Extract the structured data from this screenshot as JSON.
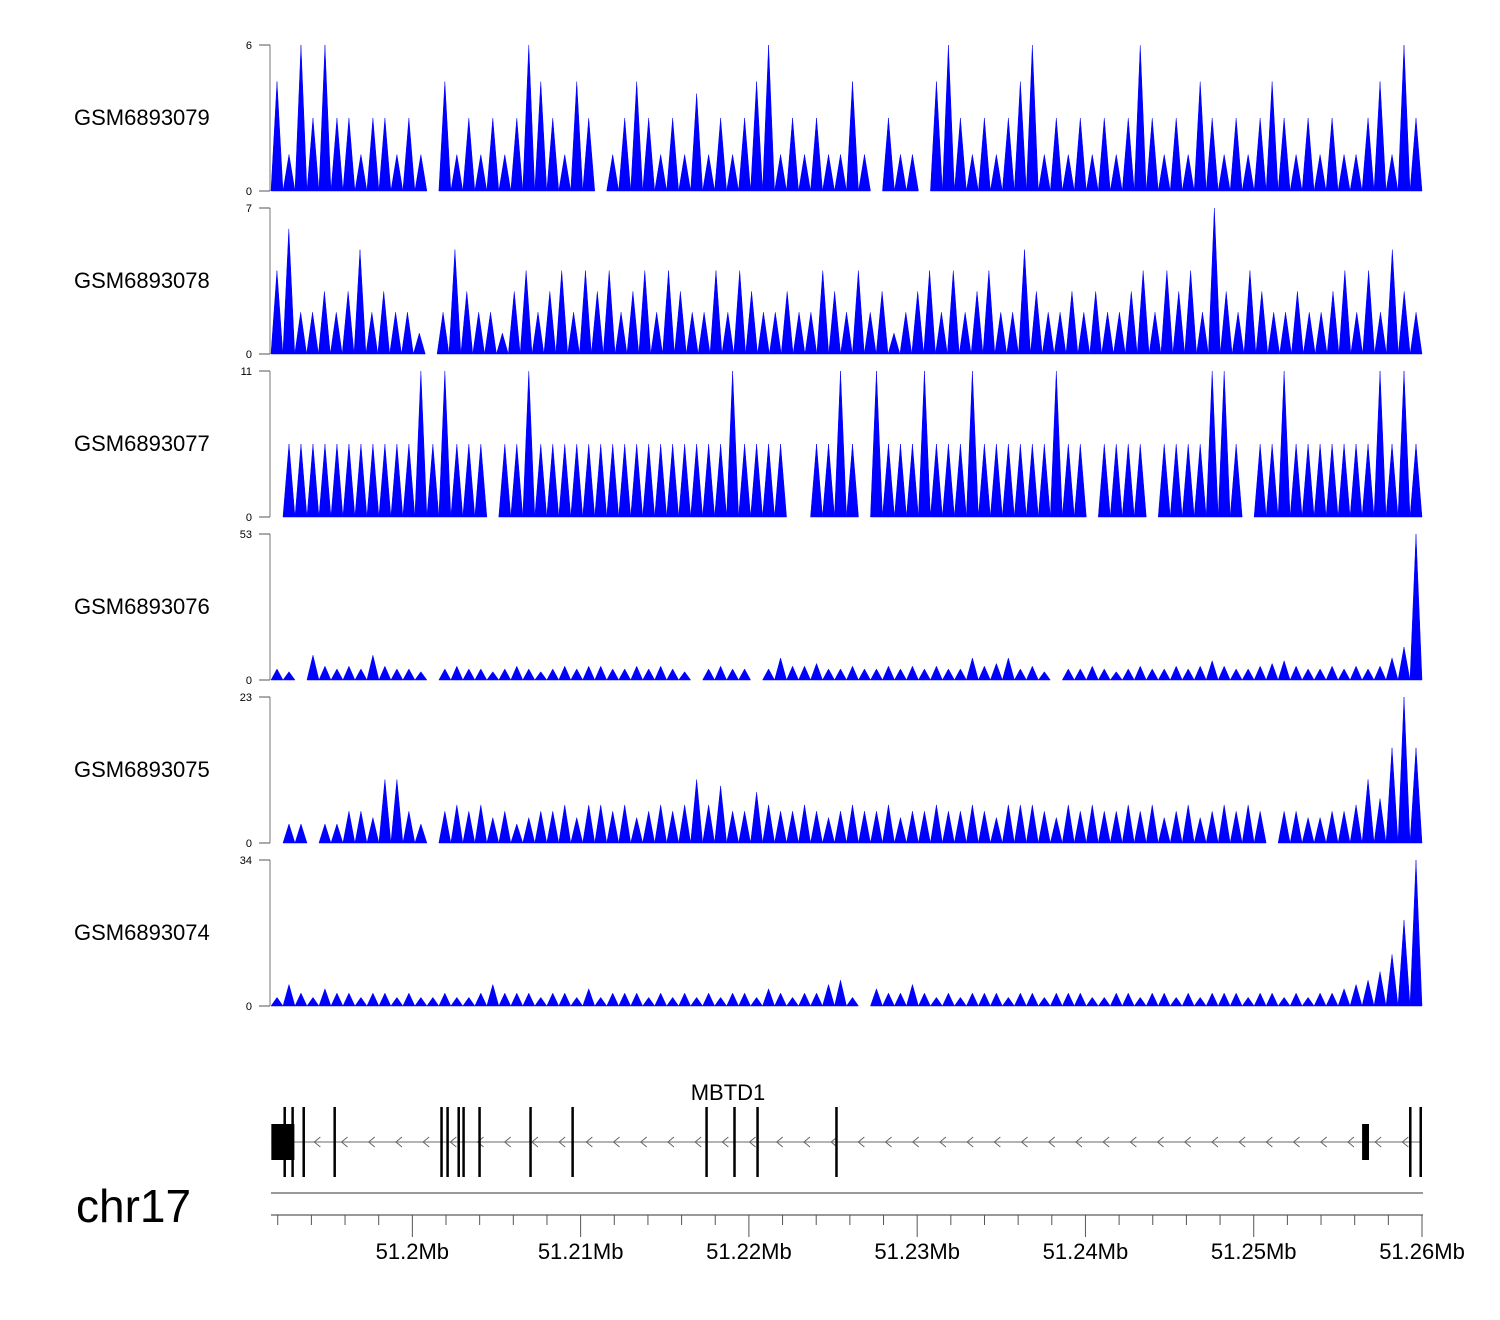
{
  "chart_data": {
    "type": "area",
    "title": "",
    "xlim": [
      51.1916,
      51.26
    ],
    "xlabel_unit": "Mb",
    "chromosome": "chr17",
    "x_ticks": [
      "51.2Mb",
      "51.21Mb",
      "51.22Mb",
      "51.23Mb",
      "51.24Mb",
      "51.25Mb",
      "51.26Mb"
    ],
    "x_tick_values": [
      51.2,
      51.21,
      51.22,
      51.23,
      51.24,
      51.25,
      51.26
    ],
    "fill_color": "#0000FF",
    "tracks": [
      {
        "name": "GSM6893079",
        "ylim": [
          0,
          6
        ],
        "ytick_labels": [
          "6",
          "0"
        ],
        "values": [
          4.5,
          1.5,
          6,
          3,
          6,
          3,
          3,
          1.5,
          3,
          3,
          1.5,
          3,
          1.5,
          0,
          4.5,
          1.5,
          3,
          1.5,
          3,
          1.5,
          3,
          6,
          4.5,
          3,
          1.5,
          4.5,
          3,
          0,
          1.5,
          3,
          4.5,
          3,
          1.5,
          3,
          1.5,
          4,
          1.5,
          3,
          1.5,
          3,
          4.5,
          6,
          1.5,
          3,
          1.5,
          3,
          1.5,
          1.5,
          4.5,
          1.5,
          0,
          3,
          1.5,
          1.5,
          0,
          4.5,
          6,
          3,
          1.5,
          3,
          1.5,
          3,
          4.5,
          6,
          1.5,
          3,
          1.5,
          3,
          1.5,
          3,
          1.5,
          3,
          6,
          3,
          1.5,
          3,
          1.5,
          4.5,
          3,
          1.5,
          3,
          1.5,
          3,
          4.5,
          3,
          1.5,
          3,
          1.5,
          3,
          1.5,
          1.5,
          3,
          4.5,
          1.5,
          6,
          3
        ]
      },
      {
        "name": "GSM6893078",
        "ylim": [
          0,
          7
        ],
        "ytick_labels": [
          "7",
          "0"
        ],
        "values": [
          4,
          6,
          2,
          2,
          3,
          2,
          3,
          5,
          2,
          3,
          2,
          2,
          1,
          0,
          2,
          5,
          3,
          2,
          2,
          1,
          3,
          4,
          2,
          3,
          4,
          2,
          4,
          3,
          4,
          2,
          3,
          4,
          2,
          4,
          3,
          2,
          2,
          4,
          2,
          4,
          3,
          2,
          2,
          3,
          2,
          2,
          4,
          3,
          2,
          4,
          2,
          3,
          1,
          2,
          3,
          4,
          2,
          4,
          2,
          3,
          4,
          2,
          2,
          5,
          3,
          2,
          2,
          3,
          2,
          3,
          2,
          2,
          3,
          4,
          2,
          4,
          3,
          4,
          2,
          7,
          3,
          2,
          4,
          3,
          2,
          2,
          3,
          2,
          2,
          3,
          4,
          2,
          4,
          2,
          5,
          3,
          2
        ]
      },
      {
        "name": "GSM6893077",
        "ylim": [
          0,
          11
        ],
        "ytick_labels": [
          "11",
          "0"
        ],
        "values": [
          0,
          5.5,
          5.5,
          5.5,
          5.5,
          5.5,
          5.5,
          5.5,
          5.5,
          5.5,
          5.5,
          5.5,
          11,
          5.5,
          11,
          5.5,
          5.5,
          5.5,
          0,
          5.5,
          5.5,
          11,
          5.5,
          5.5,
          5.5,
          5.5,
          5.5,
          5.5,
          5.5,
          5.5,
          5.5,
          5.5,
          5.5,
          5.5,
          5.5,
          5.5,
          5.5,
          5.5,
          11,
          5.5,
          5.5,
          5.5,
          5.5,
          0,
          0,
          5.5,
          5.5,
          11,
          5.5,
          0,
          11,
          5.5,
          5.5,
          5.5,
          11,
          5.5,
          5.5,
          5.5,
          11,
          5.5,
          5.5,
          5.5,
          5.5,
          5.5,
          5.5,
          11,
          5.5,
          5.5,
          0,
          5.5,
          5.5,
          5.5,
          5.5,
          0,
          5.5,
          5.5,
          5.5,
          5.5,
          11,
          11,
          5.5,
          0,
          5.5,
          5.5,
          11,
          5.5,
          5.5,
          5.5,
          5.5,
          5.5,
          5.5,
          5.5,
          11,
          5.5,
          11,
          5.5
        ]
      },
      {
        "name": "GSM6893076",
        "ylim": [
          0,
          53
        ],
        "ytick_labels": [
          "53",
          "0"
        ],
        "values": [
          4,
          3,
          0,
          9,
          5,
          4,
          5,
          4,
          9,
          5,
          4,
          4,
          3,
          0,
          4,
          5,
          4,
          4,
          3,
          4,
          5,
          4,
          3,
          4,
          5,
          4,
          5,
          5,
          4,
          4,
          5,
          4,
          5,
          4,
          3,
          0,
          4,
          5,
          4,
          4,
          0,
          4,
          8,
          5,
          5,
          6,
          4,
          4,
          5,
          4,
          4,
          5,
          4,
          5,
          4,
          5,
          4,
          4,
          8,
          5,
          6,
          8,
          4,
          5,
          3,
          0,
          4,
          4,
          5,
          4,
          3,
          4,
          5,
          4,
          4,
          5,
          4,
          5,
          7,
          5,
          4,
          4,
          5,
          6,
          7,
          5,
          4,
          4,
          5,
          4,
          5,
          4,
          5,
          8,
          12,
          53
        ]
      },
      {
        "name": "GSM6893075",
        "ylim": [
          0,
          23
        ],
        "ytick_labels": [
          "23",
          "0"
        ],
        "values": [
          0,
          3,
          3,
          0,
          3,
          3,
          5,
          5,
          4,
          10,
          10,
          5,
          3,
          0,
          5,
          6,
          5,
          6,
          4,
          5,
          3,
          4,
          5,
          5,
          6,
          4,
          6,
          6,
          5,
          6,
          4,
          5,
          6,
          5,
          6,
          10,
          6,
          9,
          5,
          5,
          8,
          6,
          5,
          5,
          6,
          5,
          4,
          5,
          6,
          5,
          5,
          6,
          4,
          5,
          5,
          6,
          5,
          5,
          6,
          5,
          4,
          6,
          6,
          6,
          5,
          4,
          6,
          5,
          6,
          5,
          5,
          6,
          5,
          6,
          4,
          5,
          6,
          4,
          5,
          6,
          5,
          6,
          5,
          0,
          5,
          5,
          4,
          4,
          5,
          5,
          6,
          10,
          7,
          15,
          23,
          15
        ]
      },
      {
        "name": "GSM6893074",
        "ylim": [
          0,
          34
        ],
        "ytick_labels": [
          "34",
          "0"
        ],
        "values": [
          2,
          5,
          3,
          2,
          4,
          3,
          3,
          2,
          3,
          3,
          2,
          3,
          2,
          2,
          3,
          2,
          2,
          3,
          5,
          3,
          3,
          3,
          2,
          3,
          3,
          2,
          4,
          2,
          3,
          3,
          3,
          2,
          3,
          2,
          3,
          2,
          3,
          2,
          3,
          3,
          2,
          4,
          3,
          2,
          3,
          3,
          5,
          6,
          2,
          0,
          4,
          3,
          3,
          5,
          3,
          2,
          3,
          2,
          3,
          3,
          3,
          2,
          3,
          3,
          2,
          3,
          3,
          3,
          2,
          2,
          3,
          3,
          2,
          3,
          3,
          2,
          3,
          2,
          3,
          3,
          3,
          2,
          3,
          3,
          2,
          3,
          2,
          3,
          3,
          4,
          5,
          6,
          8,
          12,
          20,
          34
        ]
      }
    ],
    "gene": {
      "name": "MBTD1",
      "strand": "-",
      "start": 51.19162,
      "end": 51.25994,
      "exons": [
        [
          51.19162,
          51.19299,
          "utr"
        ],
        [
          51.19234,
          51.1924,
          "cds"
        ],
        [
          51.19281,
          51.19292,
          "cds"
        ],
        [
          51.19347,
          51.19353,
          "cds"
        ],
        [
          51.19531,
          51.19537,
          "cds"
        ],
        [
          51.20166,
          51.20171,
          "cds"
        ],
        [
          51.20202,
          51.20207,
          "cds"
        ],
        [
          51.20268,
          51.20278,
          "cds"
        ],
        [
          51.20297,
          51.20302,
          "cds"
        ],
        [
          51.20392,
          51.20398,
          "cds"
        ],
        [
          51.20695,
          51.20701,
          "cds"
        ],
        [
          51.20945,
          51.20948,
          "cds"
        ],
        [
          51.21741,
          51.21746,
          "cds"
        ],
        [
          51.21907,
          51.21912,
          "cds"
        ],
        [
          51.22044,
          51.2205,
          "cds"
        ],
        [
          51.22513,
          51.22519,
          "cds"
        ],
        [
          51.25644,
          51.25685,
          "utr"
        ],
        [
          51.25923,
          51.25928,
          "cds"
        ],
        [
          51.25985,
          51.25998,
          "cds"
        ]
      ]
    }
  }
}
